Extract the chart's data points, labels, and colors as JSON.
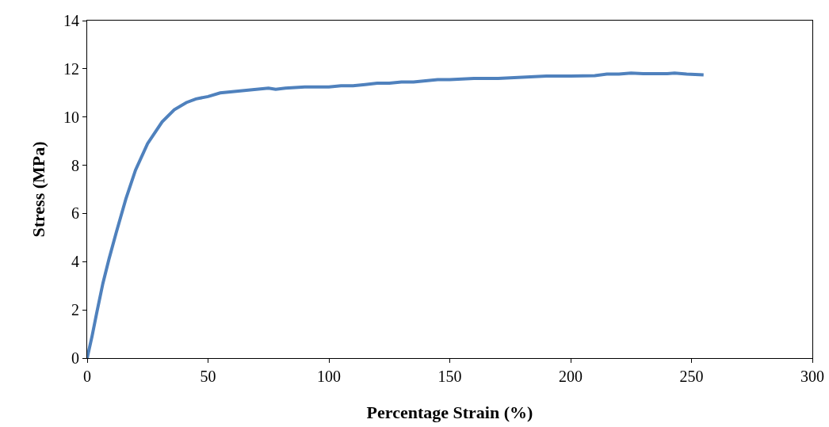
{
  "chart_data": {
    "type": "line",
    "xlabel": "Percentage Strain (%)",
    "ylabel": "Stress (MPa)",
    "series": [
      {
        "color": "#4f81bd",
        "x": [
          0,
          2,
          4,
          6.5,
          9,
          12,
          16,
          20,
          25,
          31,
          36,
          41,
          45,
          50,
          55,
          60,
          65,
          70,
          75,
          78,
          82,
          90,
          100,
          105,
          110,
          115,
          120,
          125,
          130,
          135,
          140,
          145,
          150,
          160,
          165,
          170,
          180,
          190,
          200,
          210,
          215,
          220,
          225,
          230,
          240,
          243,
          248,
          255
        ],
        "values": [
          0,
          0.9,
          1.9,
          3.1,
          4.1,
          5.2,
          6.6,
          7.8,
          8.9,
          9.8,
          10.3,
          10.6,
          10.75,
          10.85,
          11.0,
          11.05,
          11.1,
          11.15,
          11.2,
          11.15,
          11.2,
          11.25,
          11.25,
          11.3,
          11.3,
          11.35,
          11.4,
          11.4,
          11.45,
          11.45,
          11.5,
          11.55,
          11.55,
          11.6,
          11.6,
          11.6,
          11.65,
          11.7,
          11.7,
          11.72,
          11.78,
          11.78,
          11.82,
          11.8,
          11.8,
          11.82,
          11.78,
          11.75
        ]
      }
    ],
    "xlim": [
      0,
      300
    ],
    "xticks": [
      0,
      50,
      100,
      150,
      200,
      250,
      300
    ],
    "ylim": [
      0,
      14
    ],
    "yticks": [
      0,
      2,
      4,
      6,
      8,
      10,
      12,
      14
    ],
    "grid": false,
    "marker": "none",
    "line_style": "solid"
  }
}
